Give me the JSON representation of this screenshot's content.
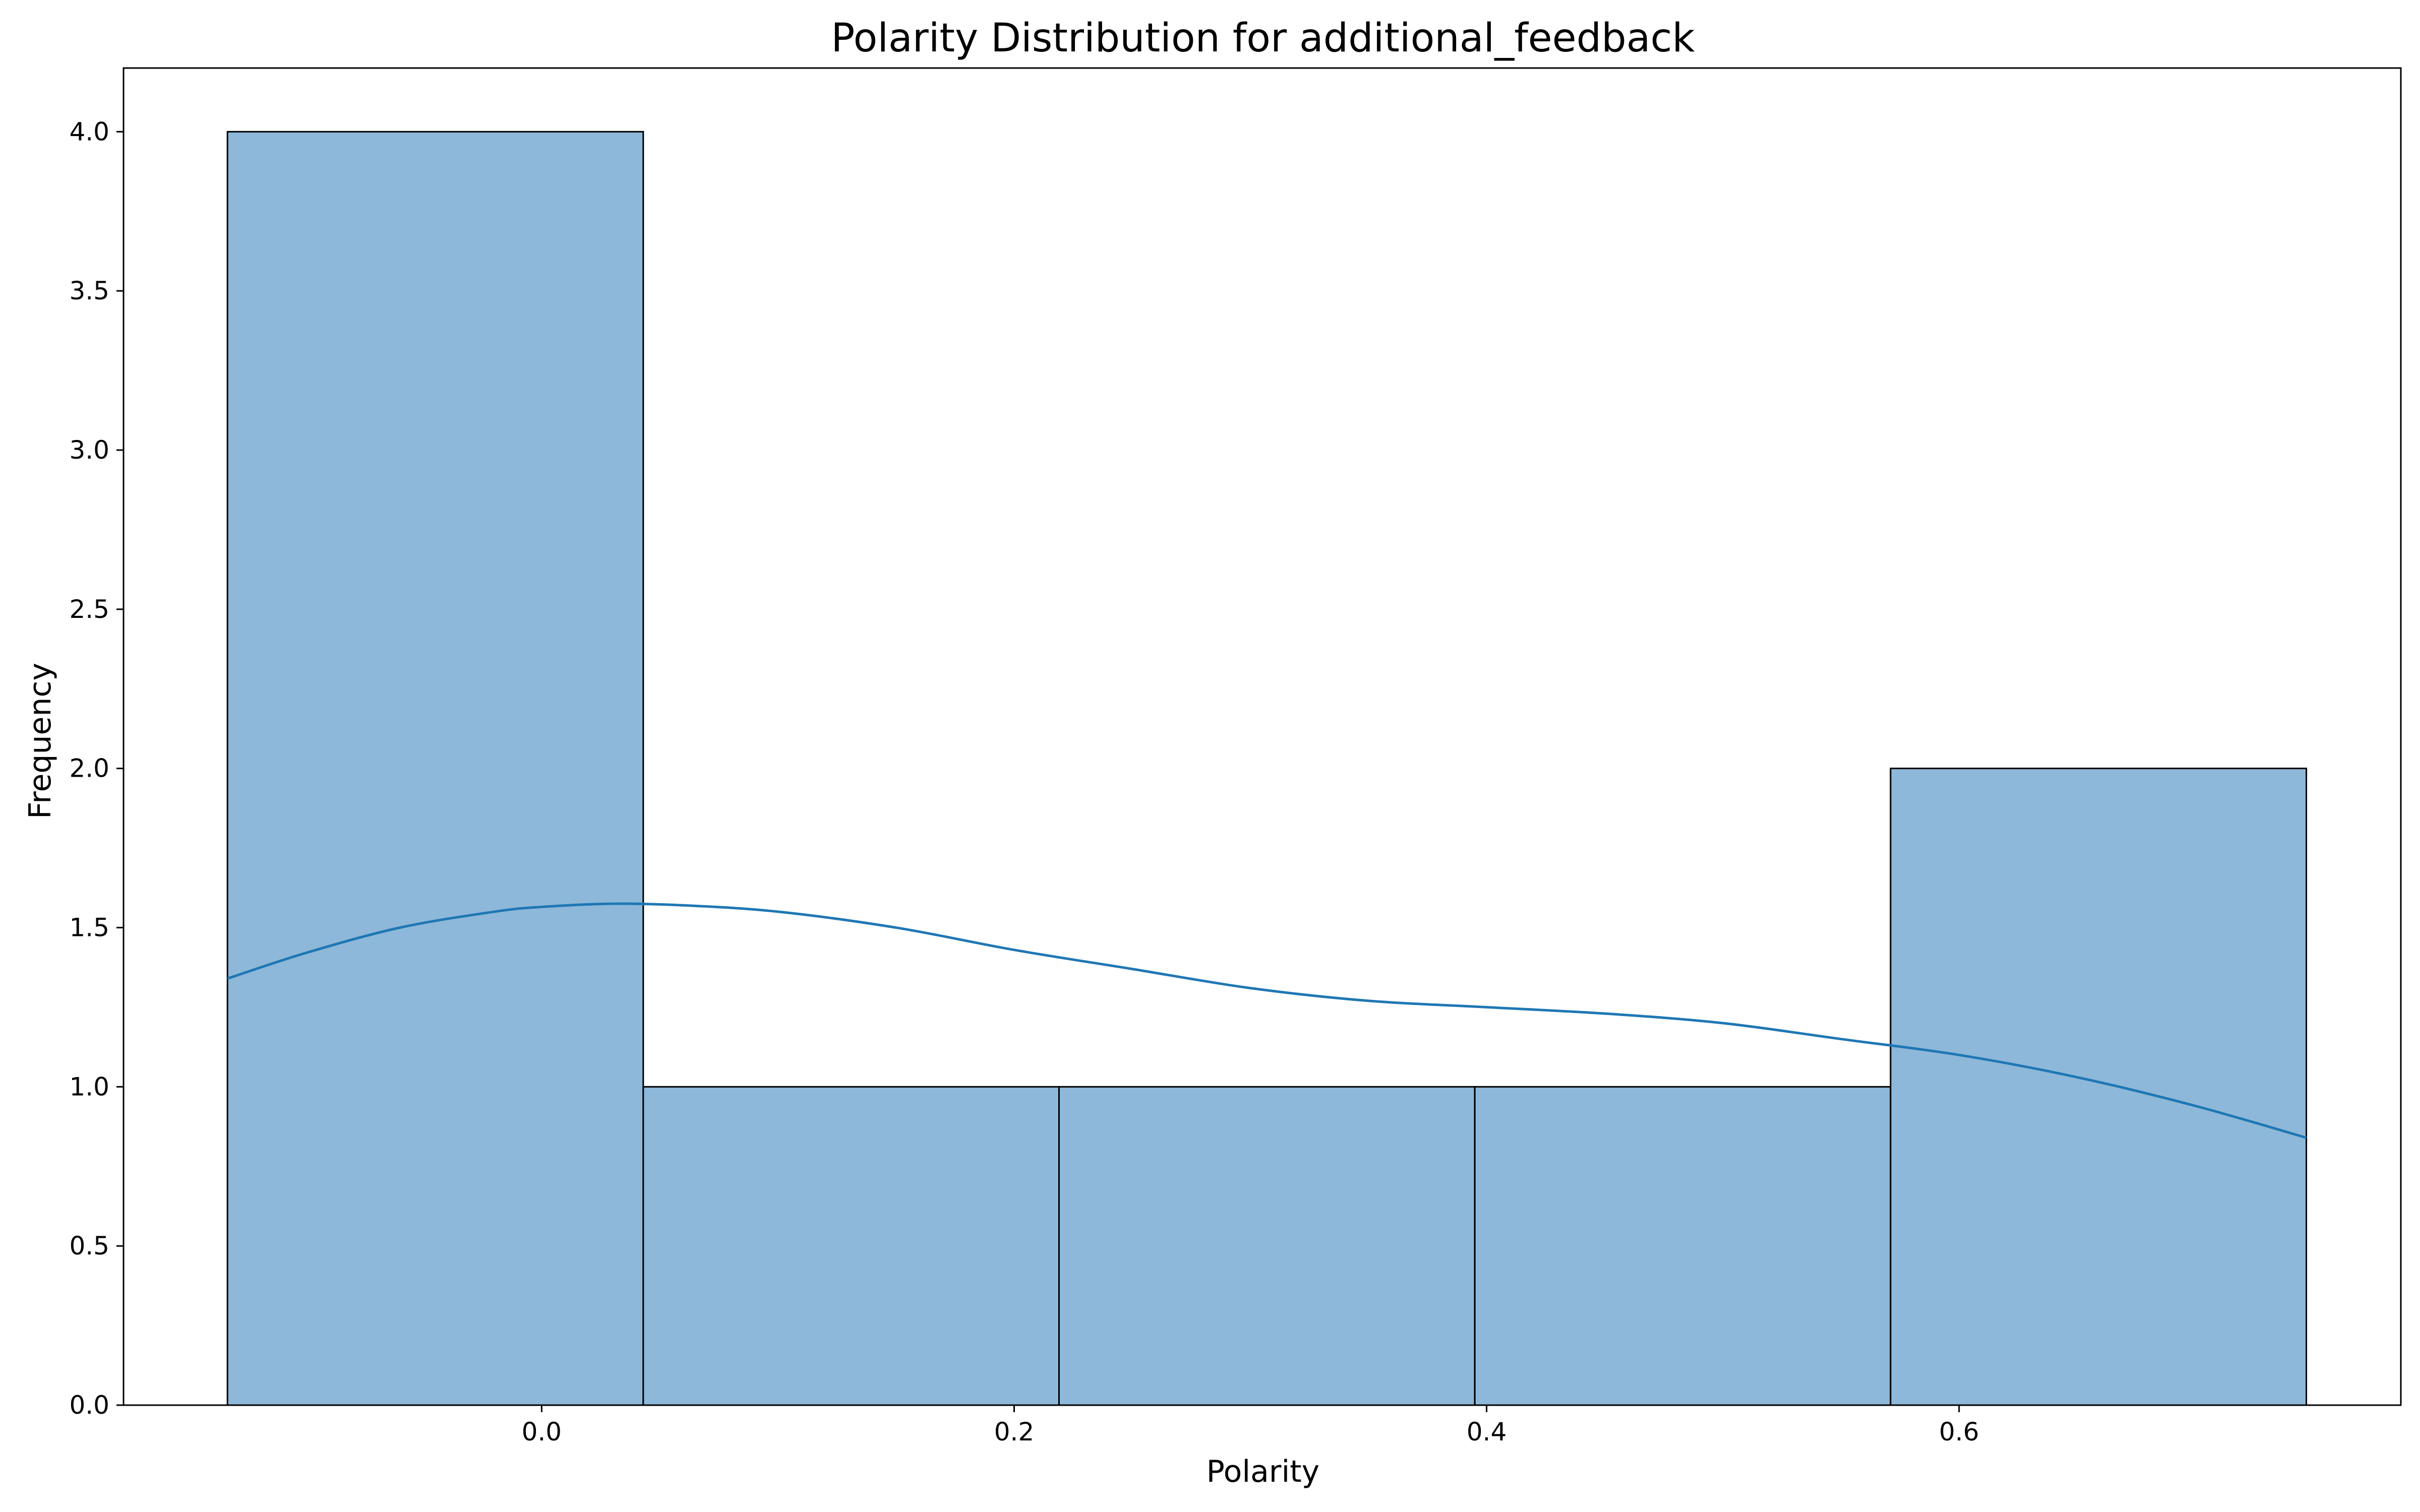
{
  "chart_data": {
    "type": "bar",
    "title": "Polarity Distribution for additional_feedback",
    "xlabel": "Polarity",
    "ylabel": "Frequency",
    "xlim": [
      -0.177,
      0.787
    ],
    "ylim": [
      0,
      4.2
    ],
    "xticks": [
      0.0,
      0.2,
      0.4,
      0.6
    ],
    "xtick_labels": [
      "0.0",
      "0.2",
      "0.4",
      "0.6"
    ],
    "yticks": [
      0.0,
      0.5,
      1.0,
      1.5,
      2.0,
      2.5,
      3.0,
      3.5,
      4.0
    ],
    "ytick_labels": [
      "0.0",
      "0.5",
      "1.0",
      "1.5",
      "2.0",
      "2.5",
      "3.0",
      "3.5",
      "4.0"
    ],
    "bins": [
      {
        "x0": -0.133,
        "x1": 0.043,
        "count": 4
      },
      {
        "x0": 0.043,
        "x1": 0.219,
        "count": 1
      },
      {
        "x0": 0.219,
        "x1": 0.395,
        "count": 1
      },
      {
        "x0": 0.395,
        "x1": 0.571,
        "count": 1
      },
      {
        "x0": 0.571,
        "x1": 0.747,
        "count": 2
      }
    ],
    "kde": {
      "x": [
        -0.133,
        -0.1,
        -0.06,
        -0.02,
        0.0,
        0.03,
        0.06,
        0.1,
        0.15,
        0.2,
        0.25,
        0.3,
        0.35,
        0.4,
        0.45,
        0.5,
        0.55,
        0.6,
        0.65,
        0.7,
        0.747
      ],
      "y": [
        1.34,
        1.42,
        1.5,
        1.55,
        1.565,
        1.575,
        1.57,
        1.55,
        1.5,
        1.43,
        1.37,
        1.31,
        1.27,
        1.25,
        1.23,
        1.2,
        1.15,
        1.1,
        1.03,
        0.94,
        0.84
      ]
    },
    "grid": false,
    "colors": {
      "bar_fill": "#8db8d9",
      "bar_edge": "#000000",
      "kde_line": "#1f77b4"
    }
  }
}
